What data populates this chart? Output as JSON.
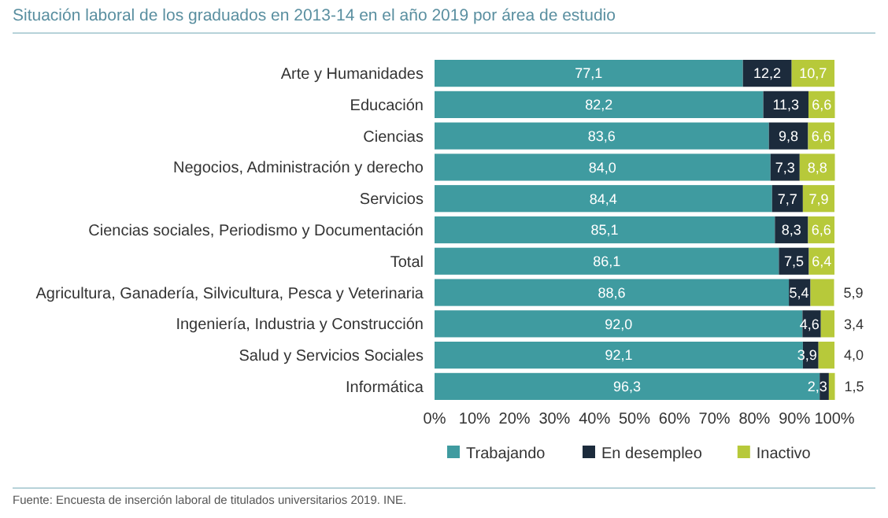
{
  "chart_data": {
    "type": "bar",
    "orientation": "horizontal",
    "stacked": true,
    "title": "Situación laboral de los graduados en 2013-14 en el año 2019 por área de estudio",
    "categories": [
      "Arte y Humanidades",
      "Educación",
      "Ciencias",
      "Negocios, Administración y derecho",
      "Servicios",
      "Ciencias sociales, Periodismo y Documentación",
      "Total",
      "Agricultura, Ganadería, Silvicultura, Pesca y Veterinaria",
      "Ingeniería, Industria y Construcción",
      "Salud y Servicios Sociales",
      "Informática"
    ],
    "series": [
      {
        "name": "Trabajando",
        "color": "#3f9ba0",
        "values": [
          77.1,
          82.2,
          83.6,
          84.0,
          84.4,
          85.1,
          86.1,
          88.6,
          92.0,
          92.1,
          96.3
        ],
        "value_labels": [
          "77,1",
          "82,2",
          "83,6",
          "84,0",
          "84,4",
          "85,1",
          "86,1",
          "88,6",
          "92,0",
          "92,1",
          "96,3"
        ]
      },
      {
        "name": "En desempleo",
        "color": "#1c2b3c",
        "values": [
          12.2,
          11.3,
          9.8,
          7.3,
          7.7,
          8.3,
          7.5,
          5.4,
          4.6,
          3.9,
          2.3
        ],
        "value_labels": [
          "12,2",
          "11,3",
          "9,8",
          "7,3",
          "7,7",
          "8,3",
          "7,5",
          "5,4",
          "4,6",
          "3,9",
          "2,3"
        ]
      },
      {
        "name": "Inactivo",
        "color": "#b7c93a",
        "values": [
          10.7,
          6.6,
          6.6,
          8.8,
          7.9,
          6.6,
          6.4,
          5.9,
          3.4,
          4.0,
          1.5
        ],
        "value_labels": [
          "10,7",
          "6,6",
          "6,6",
          "8,8",
          "7,9",
          "6,6",
          "6,4",
          "5,9",
          "3,4",
          "4,0",
          "1,5"
        ]
      }
    ],
    "xlim": [
      0,
      100
    ],
    "xticks": [
      {
        "value": 0,
        "label": "0%"
      },
      {
        "value": 10,
        "label": "10%"
      },
      {
        "value": 20,
        "label": "20%"
      },
      {
        "value": 30,
        "label": "30%"
      },
      {
        "value": 40,
        "label": "40%"
      },
      {
        "value": 50,
        "label": "50%"
      },
      {
        "value": 60,
        "label": "60%"
      },
      {
        "value": 70,
        "label": "70%"
      },
      {
        "value": 80,
        "label": "80%"
      },
      {
        "value": 90,
        "label": "90%"
      },
      {
        "value": 100,
        "label": "100%"
      }
    ],
    "grid": false,
    "legend": "bottom",
    "annotations": [
      "Fuente: Encuesta de inserción laboral de titulados universitarios 2019. INE."
    ]
  }
}
